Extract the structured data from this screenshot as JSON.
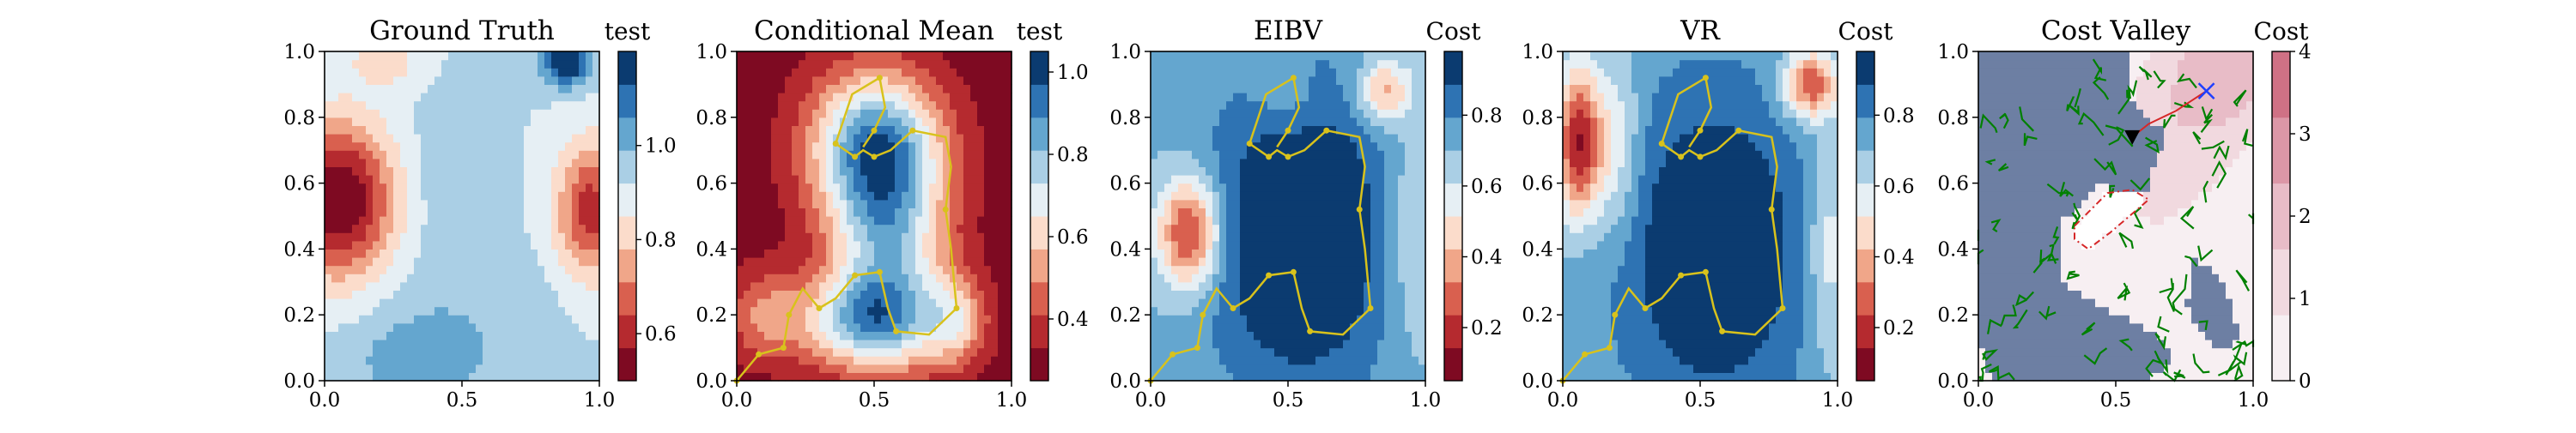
{
  "chart_data": [
    {
      "type": "heatmap",
      "title": "Ground Truth",
      "colormap": "RdBu",
      "xlim": [
        0.0,
        1.0
      ],
      "ylim": [
        0.0,
        1.0
      ],
      "xticks": [
        "0.0",
        "0.5",
        "1.0"
      ],
      "yticks": [
        "0.0",
        "0.2",
        "0.4",
        "0.6",
        "0.8",
        "1.0"
      ],
      "colorbar": {
        "title": "test",
        "ticks": [
          "0.6",
          "0.8",
          "1.0"
        ],
        "range": [
          0.5,
          1.2
        ]
      },
      "field_blobs": [
        {
          "x": 0.05,
          "y": 0.55,
          "amp": -0.45,
          "sx": 0.14,
          "sy": 0.16
        },
        {
          "x": 0.97,
          "y": 0.52,
          "amp": -0.32,
          "sx": 0.09,
          "sy": 0.14
        },
        {
          "x": 0.22,
          "y": 0.98,
          "amp": -0.12,
          "sx": 0.09,
          "sy": 0.06
        },
        {
          "x": 0.88,
          "y": 0.97,
          "amp": 0.32,
          "sx": 0.06,
          "sy": 0.05
        },
        {
          "x": 0.35,
          "y": 0.06,
          "amp": 0.12,
          "sx": 0.18,
          "sy": 0.1
        },
        {
          "x": 0.45,
          "y": 0.62,
          "amp": 0.05,
          "sx": 0.12,
          "sy": 0.18
        },
        {
          "x": 0.55,
          "y": 0.25,
          "amp": 0.04,
          "sx": 0.25,
          "sy": 0.12
        }
      ],
      "field_base": 0.92,
      "path": []
    },
    {
      "type": "heatmap",
      "title": "Conditional Mean",
      "colormap": "RdBu",
      "xlim": [
        0.0,
        1.0
      ],
      "ylim": [
        0.0,
        1.0
      ],
      "xticks": [
        "0.0",
        "0.5",
        "1.0"
      ],
      "yticks": [
        "0.0",
        "0.2",
        "0.4",
        "0.6",
        "0.8",
        "1.0"
      ],
      "colorbar": {
        "title": "test",
        "ticks": [
          "0.4",
          "0.6",
          "0.8",
          "1.0"
        ],
        "range": [
          0.25,
          1.05
        ]
      },
      "field_blobs": [
        {
          "x": 0.5,
          "y": 0.72,
          "amp": 0.55,
          "sx": 0.17,
          "sy": 0.16
        },
        {
          "x": 0.55,
          "y": 0.42,
          "amp": 0.45,
          "sx": 0.15,
          "sy": 0.22
        },
        {
          "x": 0.48,
          "y": 0.18,
          "amp": 0.45,
          "sx": 0.18,
          "sy": 0.1
        },
        {
          "x": 0.8,
          "y": 0.18,
          "amp": 0.25,
          "sx": 0.08,
          "sy": 0.1
        },
        {
          "x": 0.1,
          "y": 0.2,
          "amp": 0.2,
          "sx": 0.1,
          "sy": 0.1
        }
      ],
      "field_base": 0.28,
      "path": [
        [
          0.0,
          0.0
        ],
        [
          0.08,
          0.08
        ],
        [
          0.17,
          0.1
        ],
        [
          0.19,
          0.2
        ],
        [
          0.24,
          0.28
        ],
        [
          0.3,
          0.22
        ],
        [
          0.36,
          0.25
        ],
        [
          0.43,
          0.32
        ],
        [
          0.52,
          0.33
        ],
        [
          0.55,
          0.22
        ],
        [
          0.58,
          0.15
        ],
        [
          0.7,
          0.14
        ],
        [
          0.8,
          0.22
        ],
        [
          0.78,
          0.4
        ],
        [
          0.76,
          0.52
        ],
        [
          0.78,
          0.65
        ],
        [
          0.76,
          0.74
        ],
        [
          0.64,
          0.76
        ],
        [
          0.56,
          0.7
        ],
        [
          0.5,
          0.68
        ],
        [
          0.46,
          0.7
        ],
        [
          0.43,
          0.68
        ],
        [
          0.36,
          0.72
        ],
        [
          0.42,
          0.87
        ],
        [
          0.52,
          0.92
        ],
        [
          0.54,
          0.83
        ],
        [
          0.5,
          0.76
        ],
        [
          0.46,
          0.71
        ]
      ],
      "path_nodes": [
        [
          0.0,
          0.0
        ],
        [
          0.08,
          0.08
        ],
        [
          0.17,
          0.1
        ],
        [
          0.19,
          0.2
        ],
        [
          0.3,
          0.22
        ],
        [
          0.43,
          0.32
        ],
        [
          0.52,
          0.33
        ],
        [
          0.58,
          0.15
        ],
        [
          0.8,
          0.22
        ],
        [
          0.76,
          0.52
        ],
        [
          0.64,
          0.76
        ],
        [
          0.5,
          0.68
        ],
        [
          0.43,
          0.68
        ],
        [
          0.36,
          0.72
        ],
        [
          0.52,
          0.92
        ],
        [
          0.5,
          0.76
        ]
      ]
    },
    {
      "type": "heatmap",
      "title": "EIBV",
      "colormap": "RdBu",
      "xlim": [
        0.0,
        1.0
      ],
      "ylim": [
        0.0,
        1.0
      ],
      "xticks": [
        "0.0",
        "0.5",
        "1.0"
      ],
      "yticks": [
        "0.0",
        "0.2",
        "0.4",
        "0.6",
        "0.8",
        "1.0"
      ],
      "colorbar": {
        "title": "Cost",
        "ticks": [
          "0.2",
          "0.4",
          "0.6",
          "0.8"
        ],
        "range": [
          0.05,
          0.98
        ]
      },
      "field_blobs": [
        {
          "x": 0.14,
          "y": 0.45,
          "amp": -0.55,
          "sx": 0.08,
          "sy": 0.12
        },
        {
          "x": 0.85,
          "y": 0.88,
          "amp": -0.35,
          "sx": 0.07,
          "sy": 0.07
        },
        {
          "x": 0.5,
          "y": 0.85,
          "amp": -0.1,
          "sx": 0.1,
          "sy": 0.08
        },
        {
          "x": 0.95,
          "y": 0.45,
          "amp": -0.15,
          "sx": 0.08,
          "sy": 0.25
        },
        {
          "x": 0.55,
          "y": 0.45,
          "amp": 0.35,
          "sx": 0.25,
          "sy": 0.35
        }
      ],
      "field_base": 0.7,
      "path": [
        [
          0.0,
          0.0
        ],
        [
          0.08,
          0.08
        ],
        [
          0.17,
          0.1
        ],
        [
          0.19,
          0.2
        ],
        [
          0.24,
          0.28
        ],
        [
          0.3,
          0.22
        ],
        [
          0.36,
          0.25
        ],
        [
          0.43,
          0.32
        ],
        [
          0.52,
          0.33
        ],
        [
          0.55,
          0.22
        ],
        [
          0.58,
          0.15
        ],
        [
          0.7,
          0.14
        ],
        [
          0.8,
          0.22
        ],
        [
          0.78,
          0.4
        ],
        [
          0.76,
          0.52
        ],
        [
          0.78,
          0.65
        ],
        [
          0.76,
          0.74
        ],
        [
          0.64,
          0.76
        ],
        [
          0.56,
          0.7
        ],
        [
          0.5,
          0.68
        ],
        [
          0.46,
          0.7
        ],
        [
          0.43,
          0.68
        ],
        [
          0.36,
          0.72
        ],
        [
          0.42,
          0.87
        ],
        [
          0.52,
          0.92
        ],
        [
          0.54,
          0.83
        ],
        [
          0.5,
          0.76
        ],
        [
          0.46,
          0.71
        ]
      ],
      "path_nodes": [
        [
          0.0,
          0.0
        ],
        [
          0.08,
          0.08
        ],
        [
          0.17,
          0.1
        ],
        [
          0.19,
          0.2
        ],
        [
          0.3,
          0.22
        ],
        [
          0.43,
          0.32
        ],
        [
          0.52,
          0.33
        ],
        [
          0.58,
          0.15
        ],
        [
          0.8,
          0.22
        ],
        [
          0.76,
          0.52
        ],
        [
          0.64,
          0.76
        ],
        [
          0.5,
          0.68
        ],
        [
          0.43,
          0.68
        ],
        [
          0.36,
          0.72
        ],
        [
          0.52,
          0.92
        ],
        [
          0.5,
          0.76
        ]
      ]
    },
    {
      "type": "heatmap",
      "title": "VR",
      "colormap": "RdBu",
      "xlim": [
        0.0,
        1.0
      ],
      "ylim": [
        0.0,
        1.0
      ],
      "xticks": [
        "0.0",
        "0.5",
        "1.0"
      ],
      "yticks": [
        "0.0",
        "0.2",
        "0.4",
        "0.6",
        "0.8",
        "1.0"
      ],
      "colorbar": {
        "title": "Cost",
        "ticks": [
          "0.2",
          "0.4",
          "0.6",
          "0.8"
        ],
        "range": [
          0.05,
          0.98
        ]
      },
      "field_blobs": [
        {
          "x": 0.06,
          "y": 0.72,
          "amp": -0.6,
          "sx": 0.06,
          "sy": 0.16
        },
        {
          "x": 0.9,
          "y": 0.9,
          "amp": -0.5,
          "sx": 0.07,
          "sy": 0.07
        },
        {
          "x": 0.2,
          "y": 0.7,
          "amp": -0.2,
          "sx": 0.06,
          "sy": 0.2
        },
        {
          "x": 0.97,
          "y": 0.4,
          "amp": -0.2,
          "sx": 0.06,
          "sy": 0.25
        },
        {
          "x": 0.55,
          "y": 0.4,
          "amp": 0.3,
          "sx": 0.25,
          "sy": 0.35
        }
      ],
      "field_base": 0.72,
      "path": [
        [
          0.0,
          0.0
        ],
        [
          0.08,
          0.08
        ],
        [
          0.17,
          0.1
        ],
        [
          0.19,
          0.2
        ],
        [
          0.24,
          0.28
        ],
        [
          0.3,
          0.22
        ],
        [
          0.36,
          0.25
        ],
        [
          0.43,
          0.32
        ],
        [
          0.52,
          0.33
        ],
        [
          0.55,
          0.22
        ],
        [
          0.58,
          0.15
        ],
        [
          0.7,
          0.14
        ],
        [
          0.8,
          0.22
        ],
        [
          0.78,
          0.4
        ],
        [
          0.76,
          0.52
        ],
        [
          0.78,
          0.65
        ],
        [
          0.76,
          0.74
        ],
        [
          0.64,
          0.76
        ],
        [
          0.56,
          0.7
        ],
        [
          0.5,
          0.68
        ],
        [
          0.46,
          0.7
        ],
        [
          0.43,
          0.68
        ],
        [
          0.36,
          0.72
        ],
        [
          0.42,
          0.87
        ],
        [
          0.52,
          0.92
        ],
        [
          0.54,
          0.83
        ],
        [
          0.5,
          0.76
        ],
        [
          0.46,
          0.71
        ]
      ],
      "path_nodes": [
        [
          0.0,
          0.0
        ],
        [
          0.08,
          0.08
        ],
        [
          0.17,
          0.1
        ],
        [
          0.19,
          0.2
        ],
        [
          0.3,
          0.22
        ],
        [
          0.43,
          0.32
        ],
        [
          0.52,
          0.33
        ],
        [
          0.58,
          0.15
        ],
        [
          0.8,
          0.22
        ],
        [
          0.76,
          0.52
        ],
        [
          0.64,
          0.76
        ],
        [
          0.5,
          0.68
        ],
        [
          0.43,
          0.68
        ],
        [
          0.36,
          0.72
        ],
        [
          0.52,
          0.92
        ],
        [
          0.5,
          0.76
        ]
      ]
    },
    {
      "type": "heatmap",
      "title": "Cost Valley",
      "colormap": "PuRd-light",
      "xlim": [
        0.0,
        1.0
      ],
      "ylim": [
        0.0,
        1.0
      ],
      "xticks": [
        "0.0",
        "0.5",
        "1.0"
      ],
      "yticks": [
        "0.0",
        "0.2",
        "0.4",
        "0.6",
        "0.8",
        "1.0"
      ],
      "colorbar": {
        "title": "Cost",
        "ticks": [
          "0",
          "1",
          "2",
          "3",
          "4"
        ],
        "range": [
          0,
          4
        ]
      },
      "field_blobs": [
        {
          "x": 0.9,
          "y": 0.95,
          "amp": 1.8,
          "sx": 0.15,
          "sy": 0.12
        },
        {
          "x": 0.75,
          "y": 0.75,
          "amp": 1.0,
          "sx": 0.18,
          "sy": 0.18
        },
        {
          "x": 0.62,
          "y": 0.6,
          "amp": 0.6,
          "sx": 0.1,
          "sy": 0.12
        }
      ],
      "field_base": 0.15,
      "obstacle_region_color": "#6d7fa3",
      "obstacle_polygon": [
        [
          0.0,
          1.0
        ],
        [
          0.55,
          1.0
        ],
        [
          0.55,
          0.85
        ],
        [
          0.68,
          0.75
        ],
        [
          0.58,
          0.5
        ],
        [
          0.45,
          0.6
        ],
        [
          0.3,
          0.48
        ],
        [
          0.3,
          0.3
        ],
        [
          0.62,
          0.15
        ],
        [
          0.72,
          0.08
        ],
        [
          0.62,
          0.0
        ],
        [
          0.05,
          0.0
        ],
        [
          0.0,
          0.15
        ]
      ],
      "obstacle_polygon2": [
        [
          0.78,
          0.38
        ],
        [
          0.9,
          0.3
        ],
        [
          0.95,
          0.12
        ],
        [
          0.86,
          0.1
        ],
        [
          0.76,
          0.22
        ]
      ],
      "valley_polygon": [
        [
          0.35,
          0.47
        ],
        [
          0.47,
          0.57
        ],
        [
          0.56,
          0.58
        ],
        [
          0.62,
          0.55
        ],
        [
          0.48,
          0.45
        ],
        [
          0.4,
          0.4
        ],
        [
          0.35,
          0.43
        ]
      ],
      "tree_color": "#008000",
      "current_location": [
        0.56,
        0.74
      ],
      "target_location": [
        0.83,
        0.88
      ],
      "route": [
        [
          0.56,
          0.74
        ],
        [
          0.62,
          0.78
        ],
        [
          0.72,
          0.82
        ],
        [
          0.83,
          0.88
        ]
      ],
      "path": []
    }
  ]
}
